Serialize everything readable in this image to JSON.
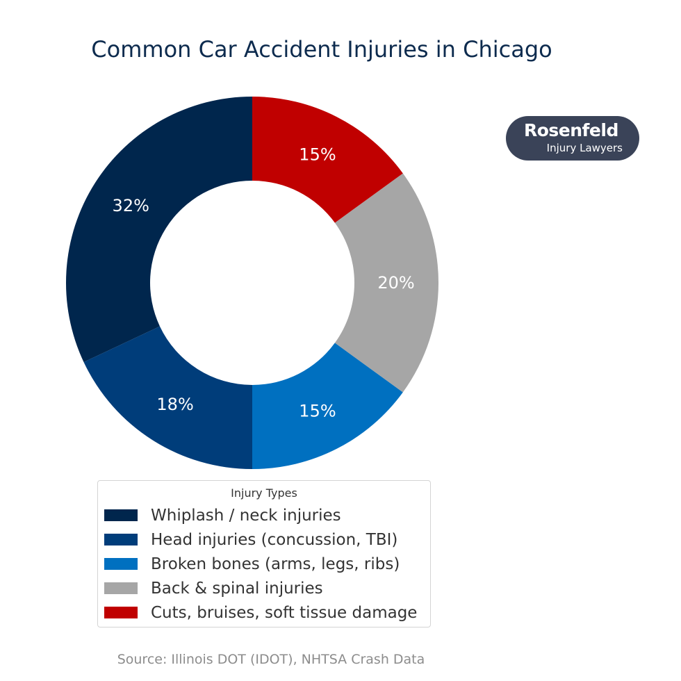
{
  "chart_data": {
    "type": "pie",
    "variant": "donut",
    "title": "Common Car Accident Injuries in Chicago",
    "categories": [
      "Whiplash / neck injuries",
      "Head injuries (concussion, TBI)",
      "Broken bones (arms, legs, ribs)",
      "Back & spinal injuries",
      "Cuts, bruises, soft tissue damage"
    ],
    "values": [
      32,
      18,
      15,
      20,
      15
    ],
    "labels": [
      "32%",
      "18%",
      "15%",
      "20%",
      "15%"
    ],
    "colors": [
      "#00264d",
      "#003d7a",
      "#0070c0",
      "#a6a6a6",
      "#c00000"
    ],
    "legend": {
      "title": "Injury Types",
      "placement": "bottom"
    },
    "source": "Source: Illinois DOT (IDOT), NHTSA Crash Data"
  },
  "brand": {
    "name": "Rosenfeld",
    "subtitle": "Injury Lawyers",
    "color": "#3a4358"
  }
}
